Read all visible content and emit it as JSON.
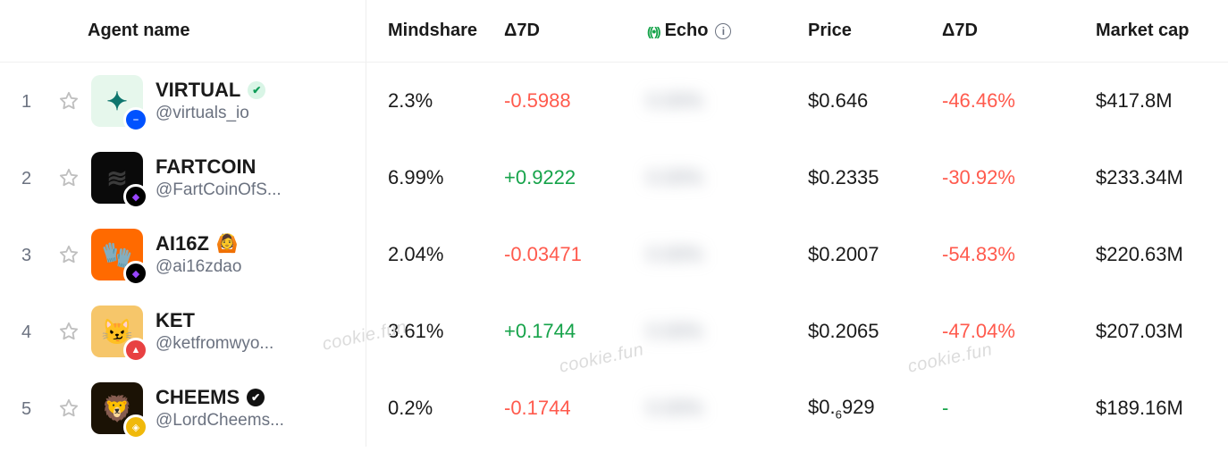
{
  "columns": {
    "agent": "Agent name",
    "mindshare": "Mindshare",
    "delta7a": "Δ7D",
    "echo": "Echo",
    "price": "Price",
    "delta7b": "Δ7D",
    "mcap": "Market cap"
  },
  "colors": {
    "positive": "#16a34a",
    "negative": "#ff5a4d",
    "muted": "#6b7280"
  },
  "watermark_text": "cookie.fun",
  "rows": [
    {
      "rank": "1",
      "name": "VIRTUAL",
      "handle": "@virtuals_io",
      "avatar_bg": "#e6f7ec",
      "avatar_glyph": "✦",
      "avatar_glyph_color": "#0f766e",
      "chain_bg": "#0052ff",
      "chain_glyph": "⎯",
      "chain_glyph_color": "#ffffff",
      "has_verify": true,
      "verify_bg": "#d9f5e6",
      "verify_color": "#0f9d58",
      "mindshare": "2.3%",
      "d7a": "-0.5988",
      "d7a_sign": "neg",
      "echo_masked": "0.00%",
      "price": "$0.646",
      "d7b": "-46.46%",
      "d7b_sign": "neg",
      "mcap": "$417.8M"
    },
    {
      "rank": "2",
      "name": "FARTCOIN",
      "handle": "@FartCoinOfS...",
      "avatar_bg": "#0a0a0a",
      "avatar_glyph": "≋",
      "avatar_glyph_color": "#3b3b3b",
      "chain_bg": "#000000",
      "chain_glyph": "◆",
      "chain_glyph_color": "#9945FF",
      "has_verify": false,
      "mindshare": "6.99%",
      "d7a": "+0.9222",
      "d7a_sign": "pos",
      "echo_masked": "0.00%",
      "price": "$0.2335",
      "d7b": "-30.92%",
      "d7b_sign": "neg",
      "mcap": "$233.34M"
    },
    {
      "rank": "3",
      "name": "AI16Z",
      "name_emoji": "🙆",
      "handle": "@ai16zdao",
      "avatar_bg": "#ff6a00",
      "avatar_glyph": "🧤",
      "avatar_glyph_color": "#ffffff",
      "chain_bg": "#000000",
      "chain_glyph": "◆",
      "chain_glyph_color": "#9945FF",
      "has_verify": false,
      "mindshare": "2.04%",
      "d7a": "-0.03471",
      "d7a_sign": "neg",
      "echo_masked": "0.00%",
      "price": "$0.2007",
      "d7b": "-54.83%",
      "d7b_sign": "neg",
      "mcap": "$220.63M"
    },
    {
      "rank": "4",
      "name": "KET",
      "handle": "@ketfromwyo...",
      "avatar_bg": "#f6c66a",
      "avatar_glyph": "😼",
      "avatar_glyph_color": "#000000",
      "chain_bg": "#e84142",
      "chain_glyph": "▲",
      "chain_glyph_color": "#ffffff",
      "has_verify": false,
      "mindshare": "3.61%",
      "d7a": "+0.1744",
      "d7a_sign": "pos",
      "echo_masked": "0.00%",
      "price": "$0.2065",
      "d7b": "-47.04%",
      "d7b_sign": "neg",
      "mcap": "$207.03M"
    },
    {
      "rank": "5",
      "name": "CHEEMS",
      "handle": "@LordCheems...",
      "avatar_bg": "#1b1205",
      "avatar_glyph": "🦁",
      "avatar_glyph_color": "#ffffff",
      "chain_bg": "#f0b90b",
      "chain_glyph": "◈",
      "chain_glyph_color": "#ffffff",
      "has_verify": true,
      "verify_bg": "#111111",
      "verify_color": "#ffffff",
      "mindshare": "0.2%",
      "d7a": "-0.1744",
      "d7a_sign": "neg",
      "echo_masked": "0.00%",
      "price_html": "$0.<span class='sub6'>6</span>929",
      "price": "$0.₆929",
      "d7b": "-",
      "d7b_sign": "pos",
      "mcap": "$189.16M"
    }
  ]
}
